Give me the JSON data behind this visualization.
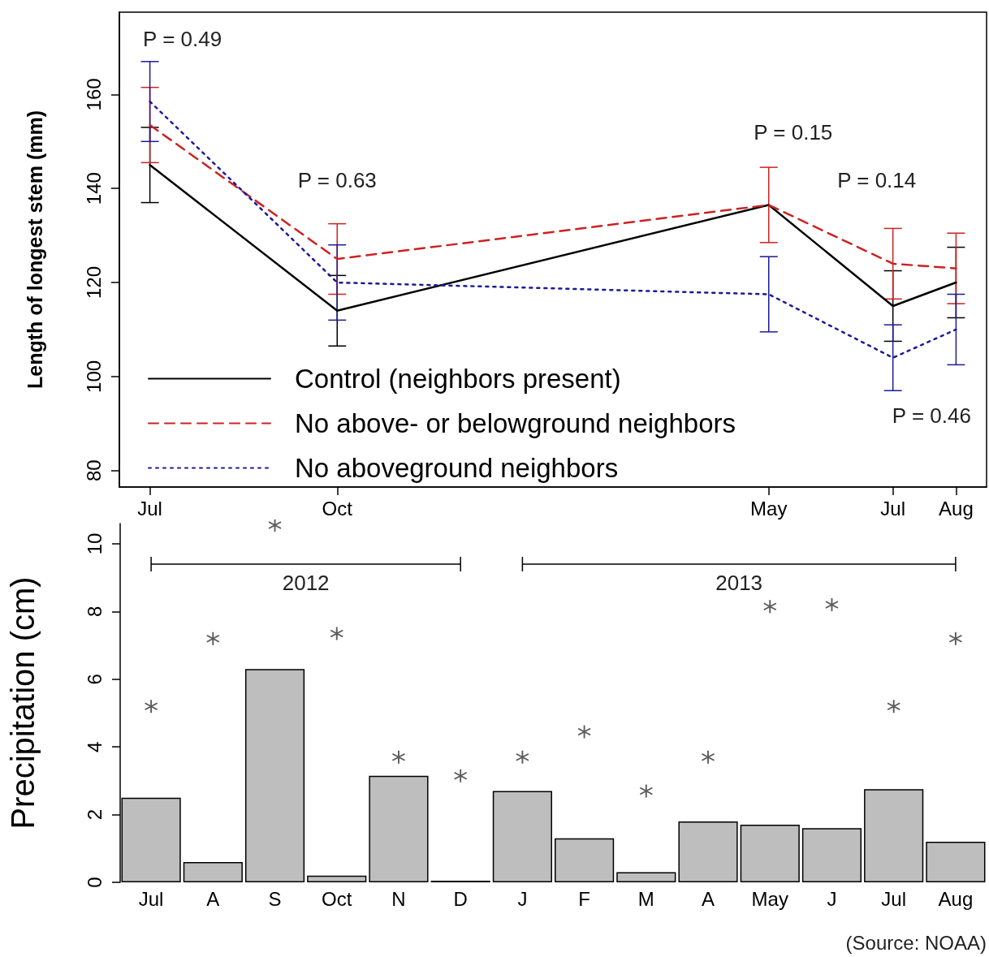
{
  "chart_data": [
    {
      "type": "line",
      "ylabel": "Length of longest stem (mm)",
      "x": [
        "2012-07",
        "2012-10",
        "2013-05",
        "2013-07",
        "2013-08"
      ],
      "xlim": [
        "2012-06-16",
        "2013-08-16"
      ],
      "xticks": [
        {
          "value": "2012-07",
          "label": "Jul"
        },
        {
          "value": "2012-10",
          "label": "Oct"
        },
        {
          "value": "2013-05",
          "label": "May"
        },
        {
          "value": "2013-07",
          "label": "Jul"
        },
        {
          "value": "2013-08",
          "label": "Aug"
        }
      ],
      "ylim": [
        76.5,
        177.5
      ],
      "yticks": [
        80,
        100,
        120,
        140,
        160
      ],
      "legend": "bottom left",
      "series": [
        {
          "name": "Control (neighbors present)",
          "color": "#000000",
          "line_style": "solid",
          "values": [
            145,
            114,
            136.5,
            115,
            120
          ],
          "errors": [
            8,
            7.5,
            null,
            7.5,
            7.5
          ]
        },
        {
          "name": "No above- or belowground neighbors",
          "color": "#cc2222",
          "line_style": "dashed",
          "values": [
            153.5,
            125,
            136.5,
            124,
            123
          ],
          "errors": [
            8,
            7.5,
            8,
            7.5,
            7.5
          ]
        },
        {
          "name": "No aboveground neighbors",
          "color": "#1a1a99",
          "line_style": "dotted",
          "values": [
            158.5,
            120,
            117.5,
            104,
            110
          ],
          "errors": [
            8.5,
            8,
            8,
            7,
            7.5
          ]
        }
      ],
      "annotations": [
        "P = 0.49",
        "P = 0.63",
        "P = 0.15",
        "P = 0.14",
        "P = 0.46"
      ]
    },
    {
      "type": "bar",
      "ylabel": "Precipitation (cm)",
      "categories": [
        "Jul",
        "A",
        "S",
        "Oct",
        "N",
        "D",
        "J",
        "F",
        "M",
        "A",
        "May",
        "J",
        "Jul",
        "Aug"
      ],
      "ylim": [
        0,
        10.6
      ],
      "yticks": [
        0,
        2,
        4,
        6,
        8,
        10
      ],
      "series": [
        {
          "color": "#bebebe",
          "values": [
            2.5,
            0.6,
            6.3,
            0.2,
            3.15,
            0.05,
            2.7,
            1.3,
            0.3,
            1.8,
            1.7,
            1.6,
            2.75,
            1.2
          ]
        },
        {
          "type": "scatter",
          "marker": "cross",
          "color": "#333333",
          "values": [
            5.2,
            7.2,
            10.55,
            7.35,
            3.7,
            3.15,
            3.7,
            4.45,
            2.7,
            3.7,
            8.15,
            8.2,
            5.2,
            7.2
          ]
        }
      ],
      "annotations": [
        "2012",
        "2013",
        "(Source: NOAA)"
      ]
    }
  ]
}
